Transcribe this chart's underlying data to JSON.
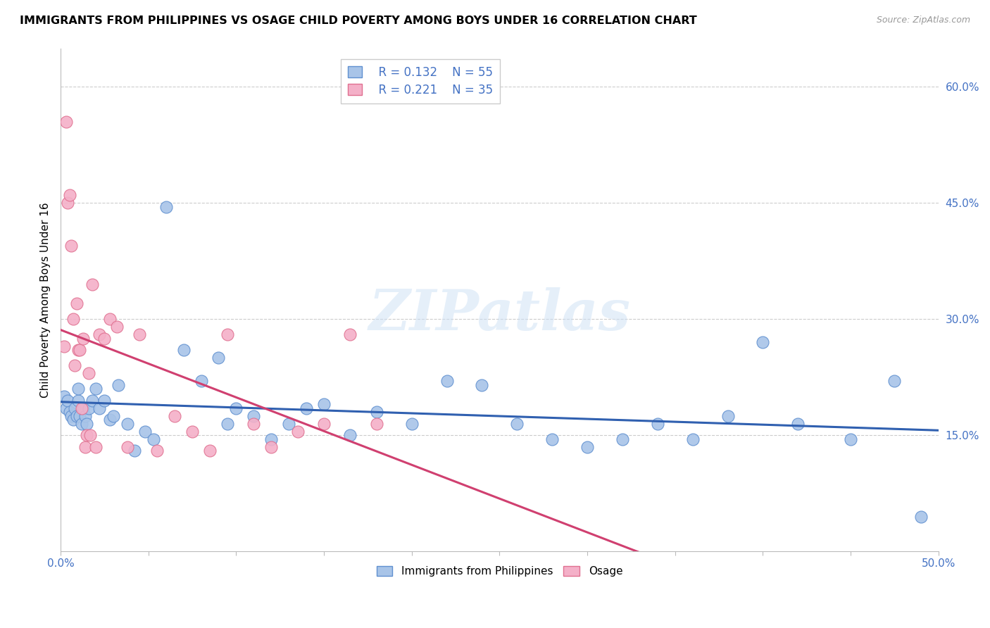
{
  "title": "IMMIGRANTS FROM PHILIPPINES VS OSAGE CHILD POVERTY AMONG BOYS UNDER 16 CORRELATION CHART",
  "source": "Source: ZipAtlas.com",
  "ylabel": "Child Poverty Among Boys Under 16",
  "xlim": [
    0.0,
    0.5
  ],
  "ylim": [
    0.0,
    0.65
  ],
  "xtick_pos": [
    0.0,
    0.05,
    0.1,
    0.15,
    0.2,
    0.25,
    0.3,
    0.35,
    0.4,
    0.45,
    0.5
  ],
  "xticklabels": [
    "0.0%",
    "",
    "",
    "",
    "",
    "",
    "",
    "",
    "",
    "",
    "50.0%"
  ],
  "yticks_right": [
    0.15,
    0.3,
    0.45,
    0.6
  ],
  "ytick_labels_right": [
    "15.0%",
    "30.0%",
    "45.0%",
    "60.0%"
  ],
  "grid_yticks": [
    0.15,
    0.3,
    0.45,
    0.6
  ],
  "blue_fill": "#a8c4e8",
  "pink_fill": "#f4b0c8",
  "blue_edge": "#6090d0",
  "pink_edge": "#e07090",
  "blue_line_color": "#3060b0",
  "pink_line_color": "#d04070",
  "legend_r1": "R = 0.132",
  "legend_n1": "N = 55",
  "legend_r2": "R = 0.221",
  "legend_n2": "N = 35",
  "watermark": "ZIPatlas",
  "blue_x": [
    0.002,
    0.003,
    0.004,
    0.005,
    0.006,
    0.007,
    0.008,
    0.009,
    0.01,
    0.01,
    0.011,
    0.012,
    0.013,
    0.014,
    0.015,
    0.016,
    0.018,
    0.02,
    0.022,
    0.025,
    0.028,
    0.03,
    0.033,
    0.038,
    0.042,
    0.048,
    0.053,
    0.06,
    0.07,
    0.08,
    0.09,
    0.095,
    0.1,
    0.11,
    0.12,
    0.13,
    0.14,
    0.15,
    0.165,
    0.18,
    0.2,
    0.22,
    0.24,
    0.26,
    0.28,
    0.3,
    0.32,
    0.34,
    0.36,
    0.38,
    0.4,
    0.42,
    0.45,
    0.475,
    0.49
  ],
  "blue_y": [
    0.2,
    0.185,
    0.195,
    0.18,
    0.175,
    0.17,
    0.185,
    0.175,
    0.195,
    0.21,
    0.175,
    0.165,
    0.185,
    0.175,
    0.165,
    0.185,
    0.195,
    0.21,
    0.185,
    0.195,
    0.17,
    0.175,
    0.215,
    0.165,
    0.13,
    0.155,
    0.145,
    0.445,
    0.26,
    0.22,
    0.25,
    0.165,
    0.185,
    0.175,
    0.145,
    0.165,
    0.185,
    0.19,
    0.15,
    0.18,
    0.165,
    0.22,
    0.215,
    0.165,
    0.145,
    0.135,
    0.145,
    0.165,
    0.145,
    0.175,
    0.27,
    0.165,
    0.145,
    0.22,
    0.045
  ],
  "pink_x": [
    0.002,
    0.003,
    0.004,
    0.005,
    0.006,
    0.007,
    0.008,
    0.009,
    0.01,
    0.011,
    0.012,
    0.013,
    0.014,
    0.015,
    0.016,
    0.017,
    0.018,
    0.02,
    0.022,
    0.025,
    0.028,
    0.032,
    0.038,
    0.045,
    0.055,
    0.065,
    0.075,
    0.085,
    0.095,
    0.11,
    0.12,
    0.135,
    0.15,
    0.165,
    0.18
  ],
  "pink_y": [
    0.265,
    0.555,
    0.45,
    0.46,
    0.395,
    0.3,
    0.24,
    0.32,
    0.26,
    0.26,
    0.185,
    0.275,
    0.135,
    0.15,
    0.23,
    0.15,
    0.345,
    0.135,
    0.28,
    0.275,
    0.3,
    0.29,
    0.135,
    0.28,
    0.13,
    0.175,
    0.155,
    0.13,
    0.28,
    0.165,
    0.135,
    0.155,
    0.165,
    0.28,
    0.165
  ],
  "blue_slope": 0.132,
  "pink_slope": 0.221
}
